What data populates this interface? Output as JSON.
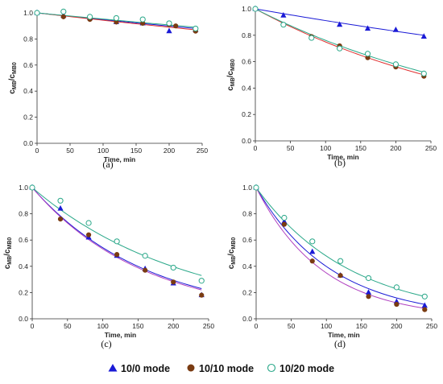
{
  "legend": [
    {
      "name": "10/0 mode",
      "color": "#1a1ad6",
      "marker": "triangle"
    },
    {
      "name": "10/10 mode",
      "color": "#7a3b12",
      "marker": "circle-filled"
    },
    {
      "name": "10/20 mode",
      "color": "#2aa889",
      "marker": "circle-open"
    }
  ],
  "chart_data": [
    {
      "type": "scatter",
      "label": "(a)",
      "xlabel": "Time, min",
      "ylabel": {
        "main": "c",
        "sub1": "MB",
        "sep": "/c",
        "sub2": "MB0"
      },
      "xlim": [
        0,
        250
      ],
      "ylim": [
        0,
        1.0
      ],
      "xticks": [
        "0",
        "50",
        "100",
        "150",
        "200",
        "250"
      ],
      "yticks": [
        "0.0",
        "0.2",
        "0.4",
        "0.6",
        "0.8",
        "1.0"
      ],
      "series": [
        {
          "name": "10/0 mode",
          "x": [
            0,
            40,
            80,
            120,
            160,
            200,
            240
          ],
          "y": [
            1.0,
            0.98,
            0.96,
            0.93,
            0.92,
            0.86,
            0.87
          ],
          "fit": [
            1.0,
            0.88
          ],
          "fitColor": "#1a1ad6"
        },
        {
          "name": "10/10 mode",
          "x": [
            0,
            40,
            80,
            120,
            160,
            200,
            210,
            240
          ],
          "y": [
            1.0,
            0.97,
            0.95,
            0.93,
            0.92,
            0.91,
            0.9,
            0.86
          ],
          "fit": [
            1.0,
            0.87
          ],
          "fitColor": "#e03030"
        },
        {
          "name": "10/20 mode",
          "x": [
            0,
            40,
            80,
            120,
            160,
            200,
            240
          ],
          "y": [
            1.0,
            1.01,
            0.97,
            0.96,
            0.95,
            0.92,
            0.88
          ],
          "fit": [
            1.0,
            0.89
          ],
          "fitColor": "#2aa889"
        }
      ]
    },
    {
      "type": "scatter",
      "label": "(b)",
      "xlabel": "Time, min",
      "ylabel": {
        "main": "c",
        "sub1": "MB",
        "sep": "/c",
        "sub2": "MB0"
      },
      "xlim": [
        0,
        250
      ],
      "ylim": [
        0,
        1.0
      ],
      "xticks": [
        "0",
        "50",
        "100",
        "150",
        "200",
        "250"
      ],
      "yticks": [
        "0.0",
        "0.2",
        "0.4",
        "0.6",
        "0.8",
        "1.0"
      ],
      "series": [
        {
          "name": "10/0 mode",
          "x": [
            0,
            40,
            120,
            160,
            200,
            240
          ],
          "y": [
            1.0,
            0.95,
            0.88,
            0.85,
            0.84,
            0.79
          ],
          "fit": [
            1.0,
            0.8
          ],
          "fitColor": "#1a1ad6"
        },
        {
          "name": "10/10 mode",
          "x": [
            0,
            40,
            80,
            120,
            160,
            200,
            240
          ],
          "y": [
            1.0,
            0.88,
            0.79,
            0.72,
            0.63,
            0.56,
            0.49
          ],
          "fit": [
            1.0,
            0.5
          ],
          "fitColor": "#e03030"
        },
        {
          "name": "10/20 mode",
          "x": [
            0,
            40,
            80,
            120,
            160,
            200,
            240
          ],
          "y": [
            1.0,
            0.88,
            0.78,
            0.7,
            0.66,
            0.58,
            0.51
          ],
          "fit": [
            1.0,
            0.52
          ],
          "fitColor": "#2aa889"
        }
      ]
    },
    {
      "type": "scatter",
      "label": "(c)",
      "xlabel": "Time, min",
      "ylabel": {
        "main": "c",
        "sub1": "MB",
        "sep": "/c",
        "sub2": "MB0"
      },
      "xlim": [
        0,
        250
      ],
      "ylim": [
        0,
        1.0
      ],
      "xticks": [
        "0",
        "50",
        "100",
        "150",
        "200",
        "250"
      ],
      "yticks": [
        "0.0",
        "0.2",
        "0.4",
        "0.6",
        "0.8",
        "1.0"
      ],
      "series": [
        {
          "name": "10/0 mode",
          "x": [
            0,
            40,
            80,
            120,
            160,
            200,
            240
          ],
          "y": [
            1.0,
            0.84,
            0.62,
            0.48,
            0.38,
            0.27,
            0.18
          ],
          "fit": [
            1.0,
            0.23
          ],
          "fitColor": "#1a1ad6"
        },
        {
          "name": "10/10 mode",
          "x": [
            0,
            40,
            80,
            120,
            160,
            200,
            240
          ],
          "y": [
            1.0,
            0.76,
            0.64,
            0.49,
            0.37,
            0.28,
            0.18
          ],
          "fit": [
            1.0,
            0.22
          ],
          "fitColor": "#b040c0"
        },
        {
          "name": "10/20 mode",
          "x": [
            0,
            40,
            80,
            120,
            160,
            200,
            240
          ],
          "y": [
            1.0,
            0.9,
            0.73,
            0.59,
            0.48,
            0.39,
            0.29
          ],
          "fit": [
            1.0,
            0.33
          ],
          "fitColor": "#2aa889"
        }
      ]
    },
    {
      "type": "scatter",
      "label": "(d)",
      "xlabel": "Time, min",
      "ylabel": {
        "main": "c",
        "sub1": "MB",
        "sep": "/c",
        "sub2": "MB0"
      },
      "xlim": [
        0,
        250
      ],
      "ylim": [
        0,
        1.0
      ],
      "xticks": [
        "0",
        "50",
        "100",
        "150",
        "200",
        "250"
      ],
      "yticks": [
        "0.0",
        "0.2",
        "0.4",
        "0.6",
        "0.8",
        "1.0"
      ],
      "series": [
        {
          "name": "10/0 mode",
          "x": [
            0,
            40,
            80,
            120,
            160,
            200,
            240
          ],
          "y": [
            1.0,
            0.74,
            0.51,
            0.33,
            0.2,
            0.13,
            0.1
          ],
          "fit": [
            1.0,
            0.11
          ],
          "fitColor": "#1a1ad6"
        },
        {
          "name": "10/10 mode",
          "x": [
            0,
            40,
            80,
            120,
            160,
            200,
            240
          ],
          "y": [
            1.0,
            0.72,
            0.44,
            0.33,
            0.17,
            0.11,
            0.07
          ],
          "fit": [
            1.0,
            0.08
          ],
          "fitColor": "#b040c0"
        },
        {
          "name": "10/20 mode",
          "x": [
            0,
            40,
            80,
            120,
            160,
            200,
            240
          ],
          "y": [
            1.0,
            0.77,
            0.59,
            0.44,
            0.31,
            0.24,
            0.17
          ],
          "fit": [
            1.0,
            0.17
          ],
          "fitColor": "#2aa889"
        }
      ]
    }
  ]
}
